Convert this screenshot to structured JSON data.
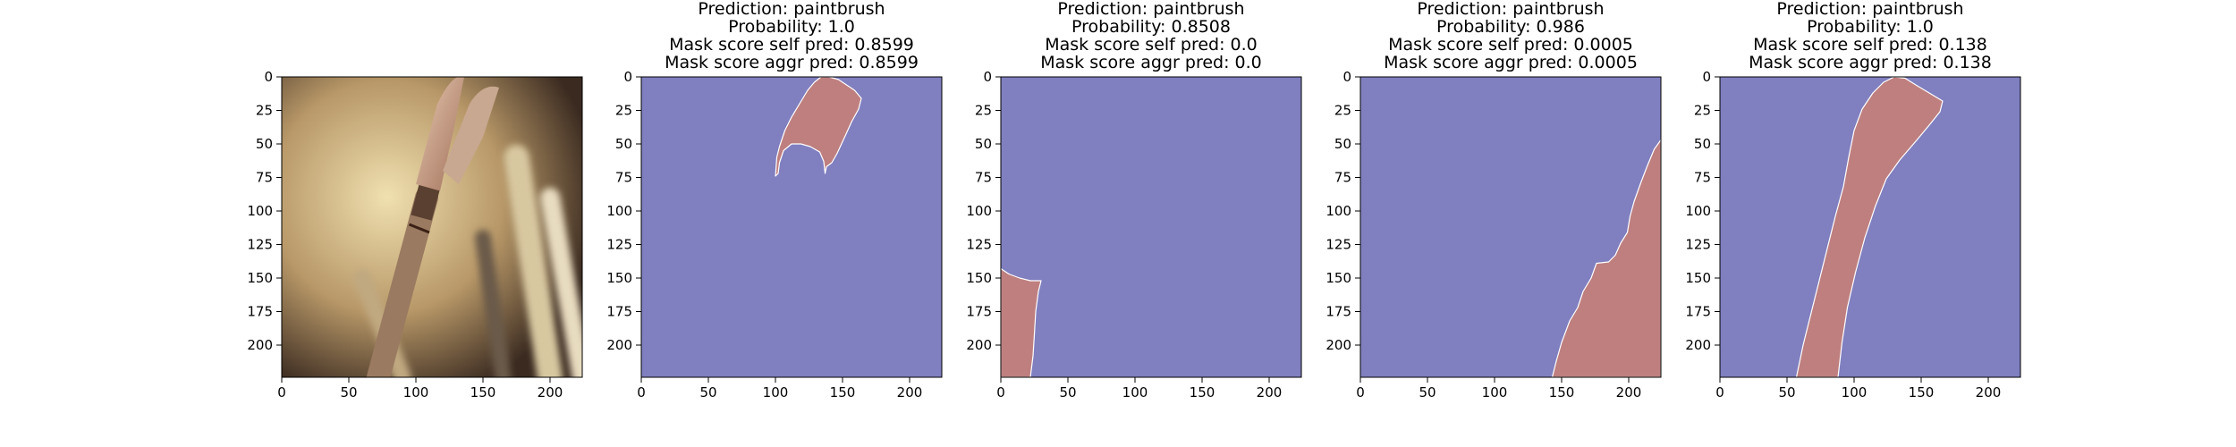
{
  "figure": {
    "panels": [
      {
        "kind": "image",
        "title_lines": []
      },
      {
        "kind": "mask",
        "title_lines": [
          "Prediction: paintbrush",
          "Probability: 1.0",
          "Mask score self pred: 0.8599",
          "Mask score aggr pred: 0.8599"
        ],
        "mask_polygons": [
          [
            [
              100,
              74
            ],
            [
              101,
              60
            ],
            [
              103,
              52
            ],
            [
              107,
              40
            ],
            [
              112,
              30
            ],
            [
              118,
              20
            ],
            [
              124,
              10
            ],
            [
              129,
              4
            ],
            [
              134,
              0
            ],
            [
              140,
              0
            ],
            [
              147,
              2
            ],
            [
              153,
              6
            ],
            [
              159,
              10
            ],
            [
              164,
              16
            ],
            [
              162,
              24
            ],
            [
              157,
              33
            ],
            [
              152,
              44
            ],
            [
              146,
              57
            ],
            [
              142,
              64
            ],
            [
              138,
              67
            ],
            [
              137,
              72
            ],
            [
              136,
              63
            ],
            [
              133,
              56
            ],
            [
              126,
              52
            ],
            [
              119,
              50
            ],
            [
              112,
              50
            ],
            [
              106,
              55
            ],
            [
              103,
              64
            ],
            [
              102,
              72
            ]
          ]
        ]
      },
      {
        "kind": "mask",
        "title_lines": [
          "Prediction: paintbrush",
          "Probability: 0.8508",
          "Mask score self pred: 0.0",
          "Mask score aggr pred: 0.0"
        ],
        "mask_polygons": [
          [
            [
              0,
              143
            ],
            [
              6,
              147
            ],
            [
              14,
              150
            ],
            [
              22,
              152
            ],
            [
              30,
              152
            ],
            [
              28,
              160
            ],
            [
              26,
              175
            ],
            [
              25,
              192
            ],
            [
              24,
              208
            ],
            [
              22,
              224
            ],
            [
              0,
              224
            ]
          ]
        ]
      },
      {
        "kind": "mask",
        "title_lines": [
          "Prediction: paintbrush",
          "Probability: 0.986",
          "Mask score self pred: 0.0005",
          "Mask score aggr pred: 0.0005"
        ],
        "mask_polygons": [
          [
            [
              143,
              224
            ],
            [
              146,
              212
            ],
            [
              150,
              198
            ],
            [
              156,
              182
            ],
            [
              162,
              172
            ],
            [
              166,
              160
            ],
            [
              172,
              150
            ],
            [
              176,
              139
            ],
            [
              185,
              138
            ],
            [
              190,
              133
            ],
            [
              194,
              124
            ],
            [
              199,
              116
            ],
            [
              201,
              104
            ],
            [
              204,
              93
            ],
            [
              209,
              79
            ],
            [
              214,
              66
            ],
            [
              219,
              54
            ],
            [
              224,
              47
            ],
            [
              224,
              224
            ]
          ]
        ]
      },
      {
        "kind": "mask",
        "title_lines": [
          "Prediction: paintbrush",
          "Probability: 1.0",
          "Mask score self pred: 0.138",
          "Mask score aggr pred: 0.138"
        ],
        "mask_polygons": [
          [
            [
              57,
              224
            ],
            [
              62,
              200
            ],
            [
              68,
              176
            ],
            [
              74,
              152
            ],
            [
              80,
              128
            ],
            [
              86,
              104
            ],
            [
              92,
              82
            ],
            [
              96,
              60
            ],
            [
              100,
              40
            ],
            [
              106,
              24
            ],
            [
              114,
              12
            ],
            [
              122,
              4
            ],
            [
              130,
              0
            ],
            [
              138,
              1
            ],
            [
              146,
              6
            ],
            [
              156,
              12
            ],
            [
              166,
              18
            ],
            [
              164,
              26
            ],
            [
              156,
              36
            ],
            [
              146,
              48
            ],
            [
              134,
              62
            ],
            [
              124,
              76
            ],
            [
              116,
              96
            ],
            [
              108,
              120
            ],
            [
              101,
              146
            ],
            [
              95,
              172
            ],
            [
              91,
              198
            ],
            [
              88,
              224
            ]
          ]
        ]
      }
    ],
    "axis": {
      "x_range": [
        0,
        224
      ],
      "y_range": [
        0,
        224
      ],
      "x_ticks": [
        "0",
        "50",
        "100",
        "150",
        "200"
      ],
      "y_ticks": [
        "0",
        "25",
        "50",
        "75",
        "100",
        "125",
        "150",
        "175",
        "200"
      ],
      "inverted_y": true
    },
    "colors": {
      "background": "#807fc0",
      "mask": "#bf7f7f",
      "outline": "#ffffff",
      "photo_dark": "#3a2a20",
      "photo_light": "#e6d4a0",
      "brush_tip": "#c69d8a",
      "brush_handle": "#9a7a60"
    }
  },
  "chart_data": {
    "type": "heatmap",
    "title": "",
    "xlabel": "",
    "ylabel": "",
    "xlim": [
      0,
      224
    ],
    "ylim": [
      224,
      0
    ],
    "panels": [
      {
        "title": "",
        "content": "paintbrush photograph"
      },
      {
        "title": "Prediction: paintbrush / Probability: 1.0 / Mask score self pred: 0.8599 / Mask score aggr pred: 0.8599",
        "mask_region": "brush tip (x 100-165, y 0-75)"
      },
      {
        "title": "Prediction: paintbrush / Probability: 0.8508 / Mask score self pred: 0.0 / Mask score aggr pred: 0.0",
        "mask_region": "lower-left corner (x 0-30, y 145-224)"
      },
      {
        "title": "Prediction: paintbrush / Probability: 0.986 / Mask score self pred: 0.0005 / Mask score aggr pred: 0.0005",
        "mask_region": "right diagonal band (x 143-224, y 47-224)"
      },
      {
        "title": "Prediction: paintbrush / Probability: 1.0 / Mask score self pred: 0.138 / Mask score aggr pred: 0.138",
        "mask_region": "full brush diagonal (x 57-166, y 0-224)"
      }
    ]
  }
}
